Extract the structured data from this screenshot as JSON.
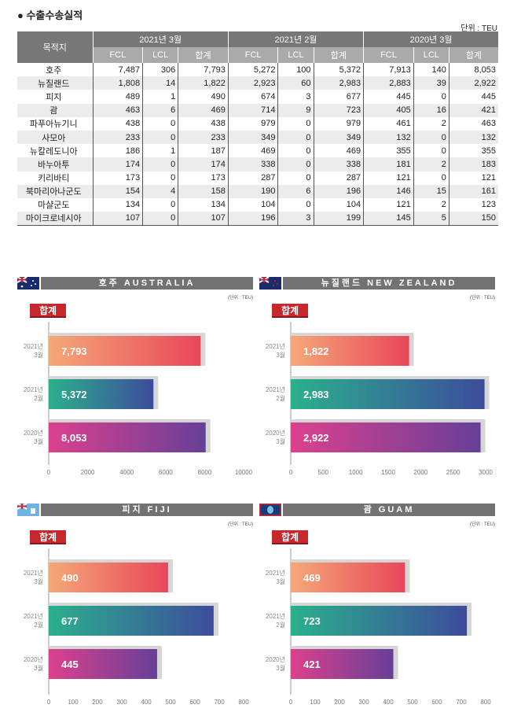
{
  "title": "수출수송실적",
  "unit": "단위 : TEU",
  "table": {
    "dest_header": "목적지",
    "periods": [
      "2021년 3월",
      "2021년 2월",
      "2020년 3월"
    ],
    "subheaders": [
      "FCL",
      "LCL",
      "합계"
    ],
    "rows": [
      [
        "호주",
        "7,487",
        "306",
        "7,793",
        "5,272",
        "100",
        "5,372",
        "7,913",
        "140",
        "8,053"
      ],
      [
        "뉴질랜드",
        "1,808",
        "14",
        "1,822",
        "2,923",
        "60",
        "2,983",
        "2,883",
        "39",
        "2,922"
      ],
      [
        "피지",
        "489",
        "1",
        "490",
        "674",
        "3",
        "677",
        "445",
        "0",
        "445"
      ],
      [
        "괌",
        "463",
        "6",
        "469",
        "714",
        "9",
        "723",
        "405",
        "16",
        "421"
      ],
      [
        "파푸아뉴기니",
        "438",
        "0",
        "438",
        "979",
        "0",
        "979",
        "461",
        "2",
        "463"
      ],
      [
        "사모아",
        "233",
        "0",
        "233",
        "349",
        "0",
        "349",
        "132",
        "0",
        "132"
      ],
      [
        "뉴칼레도니아",
        "186",
        "1",
        "187",
        "469",
        "0",
        "469",
        "355",
        "0",
        "355"
      ],
      [
        "바누아투",
        "174",
        "0",
        "174",
        "338",
        "0",
        "338",
        "181",
        "2",
        "183"
      ],
      [
        "키리바티",
        "173",
        "0",
        "173",
        "287",
        "0",
        "287",
        "121",
        "0",
        "121"
      ],
      [
        "북마리아나군도",
        "154",
        "4",
        "158",
        "190",
        "6",
        "196",
        "146",
        "15",
        "161"
      ],
      [
        "마샬군도",
        "134",
        "0",
        "134",
        "104",
        "0",
        "104",
        "121",
        "2",
        "123"
      ],
      [
        "마이크로네시아",
        "107",
        "0",
        "107",
        "196",
        "3",
        "199",
        "145",
        "5",
        "150"
      ]
    ]
  },
  "chart_data": [
    {
      "type": "bar",
      "title": "호주 AUSTRALIA",
      "unit": "(단위 : TEU)",
      "badge": "합계",
      "categories": [
        [
          "2021년",
          "3월"
        ],
        [
          "2021년",
          "2월"
        ],
        [
          "2020년",
          "3월"
        ]
      ],
      "values": [
        7793,
        5372,
        8053
      ],
      "labels": [
        "7,793",
        "5,372",
        "8,053"
      ],
      "xlim": [
        0,
        10000
      ],
      "ticks": [
        0,
        2000,
        4000,
        6000,
        8000,
        10000
      ]
    },
    {
      "type": "bar",
      "title": "뉴질랜드 NEW ZEALAND",
      "unit": "(단위 : TEU)",
      "badge": "합계",
      "categories": [
        [
          "2021년",
          "3월"
        ],
        [
          "2021년",
          "2월"
        ],
        [
          "2020년",
          "3월"
        ]
      ],
      "values": [
        1822,
        2983,
        2922
      ],
      "labels": [
        "1,822",
        "2,983",
        "2,922"
      ],
      "xlim": [
        0,
        3000
      ],
      "ticks": [
        0,
        500,
        1000,
        1500,
        2000,
        2500,
        3000
      ]
    },
    {
      "type": "bar",
      "title": "피지 FIJI",
      "unit": "(단위 : TEU)",
      "badge": "합계",
      "categories": [
        [
          "2021년",
          "3월"
        ],
        [
          "2021년",
          "2월"
        ],
        [
          "2020년",
          "3월"
        ]
      ],
      "values": [
        490,
        677,
        445
      ],
      "labels": [
        "490",
        "677",
        "445"
      ],
      "xlim": [
        0,
        800
      ],
      "ticks": [
        0,
        100,
        200,
        300,
        400,
        500,
        600,
        700,
        800
      ]
    },
    {
      "type": "bar",
      "title": "괌 GUAM",
      "unit": "(단위 : TEU)",
      "badge": "합계",
      "categories": [
        [
          "2021년",
          "3월"
        ],
        [
          "2021년",
          "2월"
        ],
        [
          "2020년",
          "3월"
        ]
      ],
      "values": [
        469,
        723,
        421
      ],
      "labels": [
        "469",
        "723",
        "421"
      ],
      "xlim": [
        0,
        800
      ],
      "ticks": [
        0,
        100,
        200,
        300,
        400,
        500,
        600,
        700,
        800
      ]
    }
  ],
  "colors": {
    "bar1": [
      "#f5a878",
      "#e8475a"
    ],
    "bar2": [
      "#2bb08c",
      "#3c4c9c"
    ],
    "bar3": [
      "#dc418d",
      "#673f97"
    ],
    "header": "#727272",
    "badge": "#c8282d"
  }
}
